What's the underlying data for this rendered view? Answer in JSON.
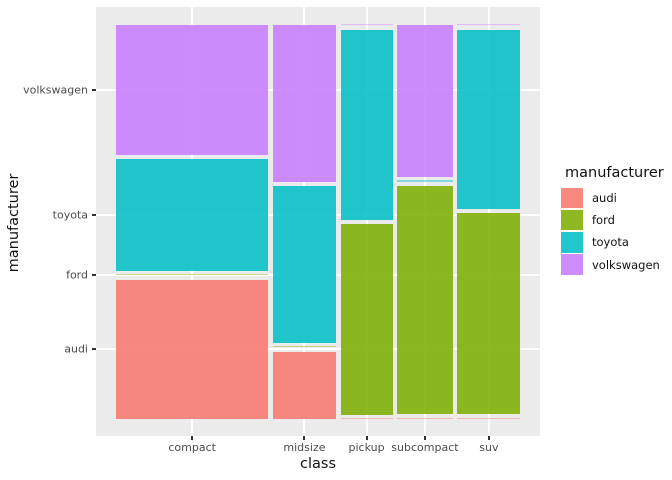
{
  "chart_data": {
    "type": "mosaic",
    "title": "",
    "xlabel": "class",
    "ylabel": "manufacturer",
    "categories": [
      "compact",
      "midsize",
      "pickup",
      "subcompact",
      "suv"
    ],
    "stack_order_bottom_to_top": [
      "audi",
      "ford",
      "toyota",
      "volkswagen"
    ],
    "series": [
      {
        "name": "audi",
        "values": [
          15,
          3,
          0,
          0,
          0
        ]
      },
      {
        "name": "ford",
        "values": [
          0,
          0,
          7,
          9,
          9
        ]
      },
      {
        "name": "toyota",
        "values": [
          12,
          7,
          7,
          0,
          8
        ]
      },
      {
        "name": "volkswagen",
        "values": [
          14,
          7,
          0,
          6,
          0
        ]
      }
    ],
    "column_totals": [
      41,
      17,
      14,
      15,
      17
    ],
    "grand_total": 104,
    "colors": {
      "audi": "#F8766D",
      "ford": "#7CAE00",
      "toyota": "#00BFC4",
      "volkswagen": "#C77CFF"
    },
    "x_axis": {
      "title": "class",
      "ticks": [
        "compact",
        "midsize",
        "pickup",
        "subcompact",
        "suv"
      ]
    },
    "y_axis": {
      "title": "manufacturer",
      "ticks_bottom_to_top": [
        "audi",
        "ford",
        "toyota",
        "volkswagen"
      ]
    },
    "legend_position": "right",
    "grid": true
  },
  "legend": {
    "title": "manufacturer",
    "entries": [
      {
        "label": "audi",
        "color": "#F8766D"
      },
      {
        "label": "ford",
        "color": "#7CAE00"
      },
      {
        "label": "toyota",
        "color": "#00BFC4"
      },
      {
        "label": "volkswagen",
        "color": "#C77CFF"
      }
    ]
  },
  "style": {
    "panel_bg": "#EBEBEB",
    "gridline": "#FFFFFF",
    "tick_mark": "#333333",
    "tick_label": "#4D4D4D",
    "axis_title": "#111111",
    "fill_alpha": 0.87
  }
}
